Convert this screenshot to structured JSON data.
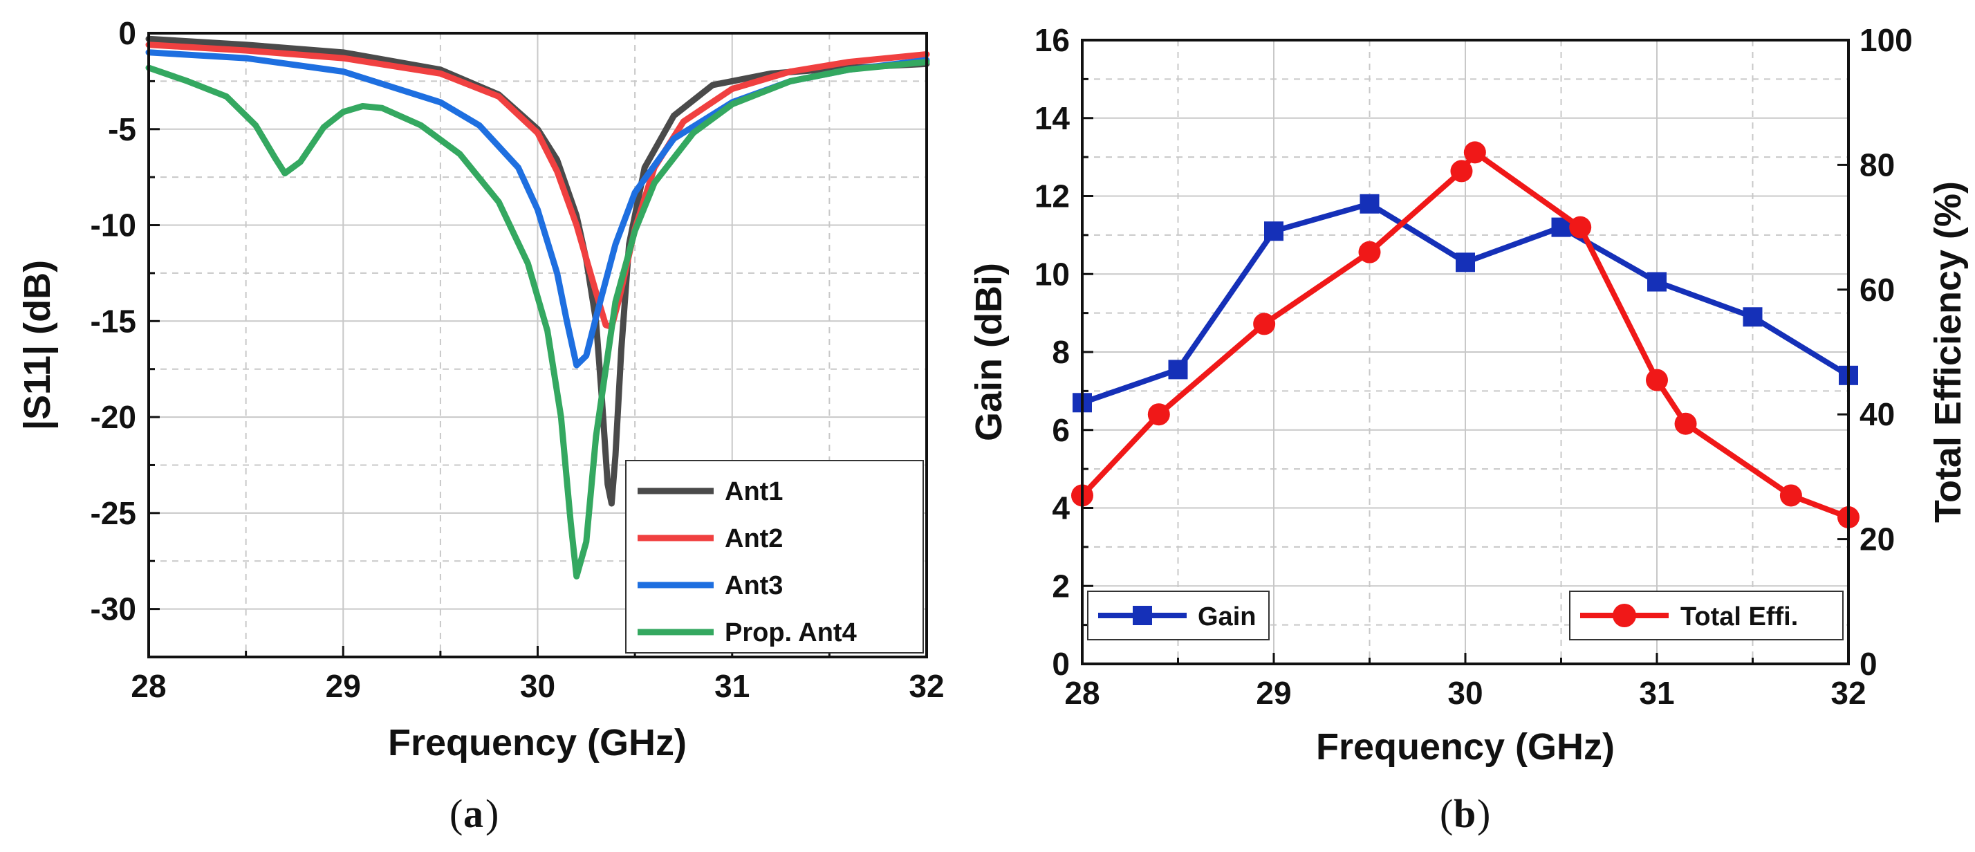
{
  "chart_data": [
    {
      "type": "line",
      "panel_label": "a",
      "xlabel": "Frequency (GHz)",
      "ylabel": "|S11| (dB)",
      "xlim": [
        28,
        32
      ],
      "ylim": [
        -32.5,
        0
      ],
      "xticks": [
        28,
        29,
        30,
        31,
        32
      ],
      "yticks": [
        0,
        -5,
        -10,
        -15,
        -20,
        -25,
        -30
      ],
      "grid": true,
      "legend_position": "bottom-right",
      "series": [
        {
          "name": "Ant1",
          "color": "#4a4a4a",
          "x": [
            28,
            28.5,
            29,
            29.5,
            29.8,
            30.0,
            30.1,
            30.2,
            30.25,
            30.3,
            30.33,
            30.36,
            30.38,
            30.4,
            30.43,
            30.47,
            30.55,
            30.7,
            30.9,
            31.2,
            31.6,
            32
          ],
          "y": [
            -0.3,
            -0.6,
            -1.0,
            -1.9,
            -3.2,
            -5.0,
            -6.6,
            -9.5,
            -11.8,
            -15.0,
            -19.0,
            -23.5,
            -24.5,
            -22.0,
            -16.5,
            -11.0,
            -7.0,
            -4.3,
            -2.7,
            -2.1,
            -1.8,
            -1.6
          ]
        },
        {
          "name": "Ant2",
          "color": "#f04040",
          "x": [
            28,
            28.5,
            29,
            29.5,
            29.8,
            30.0,
            30.1,
            30.2,
            30.3,
            30.35,
            30.38,
            30.42,
            30.5,
            30.6,
            30.75,
            31.0,
            31.3,
            31.6,
            32
          ],
          "y": [
            -0.6,
            -0.9,
            -1.3,
            -2.1,
            -3.3,
            -5.2,
            -7.2,
            -10.0,
            -13.5,
            -15.2,
            -15.3,
            -13.8,
            -10.2,
            -7.0,
            -4.6,
            -2.9,
            -2.0,
            -1.5,
            -1.1
          ]
        },
        {
          "name": "Ant3",
          "color": "#1e6fe0",
          "x": [
            28,
            28.5,
            29,
            29.5,
            29.7,
            29.9,
            30.0,
            30.1,
            30.15,
            30.2,
            30.25,
            30.3,
            30.4,
            30.5,
            30.7,
            31.0,
            31.3,
            31.6,
            32
          ],
          "y": [
            -1.0,
            -1.3,
            -2.0,
            -3.6,
            -4.8,
            -7.0,
            -9.2,
            -12.5,
            -15.0,
            -17.3,
            -16.8,
            -14.8,
            -11.0,
            -8.3,
            -5.5,
            -3.6,
            -2.5,
            -1.9,
            -1.4
          ]
        },
        {
          "name": "Prop. Ant4",
          "color": "#34a860",
          "x": [
            28,
            28.2,
            28.4,
            28.55,
            28.65,
            28.7,
            28.78,
            28.9,
            29.0,
            29.1,
            29.2,
            29.4,
            29.6,
            29.8,
            29.95,
            30.05,
            30.12,
            30.17,
            30.2,
            30.25,
            30.3,
            30.4,
            30.5,
            30.6,
            30.8,
            31.0,
            31.3,
            31.6,
            32
          ],
          "y": [
            -1.8,
            -2.5,
            -3.3,
            -4.8,
            -6.5,
            -7.3,
            -6.7,
            -4.9,
            -4.1,
            -3.8,
            -3.9,
            -4.8,
            -6.3,
            -8.8,
            -12.0,
            -15.5,
            -20.0,
            -25.5,
            -28.3,
            -26.5,
            -21.0,
            -14.0,
            -10.3,
            -7.8,
            -5.2,
            -3.7,
            -2.5,
            -1.9,
            -1.5
          ]
        }
      ]
    },
    {
      "type": "line",
      "panel_label": "b",
      "xlabel": "Frequency (GHz)",
      "ylabel": "Gain (dBi)",
      "ylabel_right": "Total Efficiency (%)",
      "xlim": [
        28,
        32
      ],
      "ylim": [
        0,
        16
      ],
      "ylim_right": [
        0,
        100
      ],
      "xticks": [
        28,
        29,
        30,
        31,
        32
      ],
      "yticks": [
        0,
        2,
        4,
        6,
        8,
        10,
        12,
        14,
        16
      ],
      "yticks_right": [
        0,
        20,
        40,
        60,
        80,
        100
      ],
      "grid": true,
      "series": [
        {
          "name": "Gain",
          "axis": "left",
          "color": "#1530b8",
          "marker": "square",
          "legend_position": "bottom-left",
          "x": [
            28,
            28.5,
            29,
            29.5,
            30,
            30.5,
            31,
            31.5,
            32
          ],
          "y": [
            6.7,
            7.55,
            11.1,
            11.8,
            10.3,
            11.2,
            9.8,
            8.9,
            7.4
          ]
        },
        {
          "name": "Total Effi.",
          "axis": "right",
          "color": "#f01818",
          "marker": "circle",
          "legend_position": "bottom-right",
          "x": [
            28,
            28.4,
            28.95,
            29.5,
            29.98,
            30.05,
            30.6,
            31.0,
            31.15,
            31.7,
            32
          ],
          "y": [
            27,
            40,
            54.5,
            66,
            79,
            82,
            70,
            45.5,
            38.5,
            27,
            23.5
          ]
        }
      ]
    }
  ],
  "captions": {
    "a": "a",
    "b": "b"
  }
}
